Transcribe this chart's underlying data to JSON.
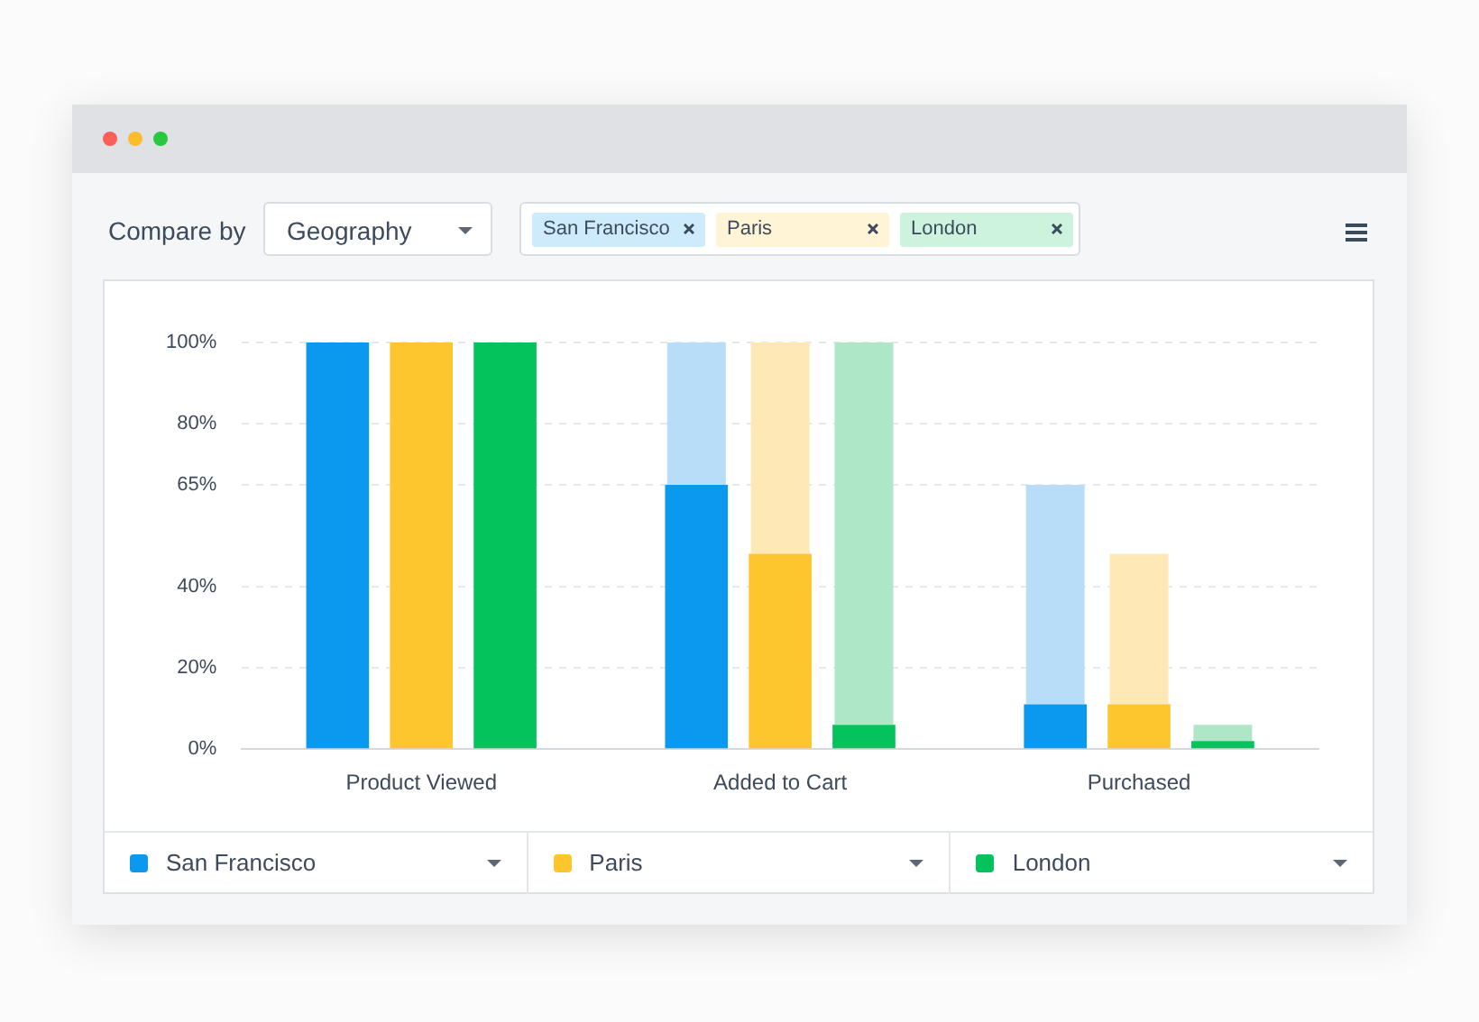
{
  "chart_data": {
    "type": "bar",
    "categories": [
      "Product Viewed",
      "Added to Cart",
      "Purchased"
    ],
    "series": [
      {
        "name": "San Francisco",
        "color": "#0a99ee",
        "values": [
          100,
          65,
          11
        ]
      },
      {
        "name": "Paris",
        "color": "#fec62e",
        "values": [
          100,
          48,
          11
        ]
      },
      {
        "name": "London",
        "color": "#04c35c",
        "values": [
          100,
          6,
          2
        ]
      },
      {
        "color": "#b8ddf8",
        "values": [
          null,
          35,
          54
        ],
        "base": [
          null,
          65,
          11
        ]
      },
      {
        "color": "#fde8b6",
        "values": [
          null,
          52,
          37
        ],
        "base": [
          null,
          48,
          11
        ]
      },
      {
        "color": "#aee7c8",
        "values": [
          null,
          94,
          4
        ],
        "base": [
          null,
          6,
          2
        ]
      }
    ],
    "ylim": [
      0,
      100
    ],
    "yticks": [
      {
        "value": 0,
        "label": "0%"
      },
      {
        "value": 20,
        "label": "20%"
      },
      {
        "value": 40,
        "label": "40%"
      },
      {
        "value": 65,
        "label": "65%"
      },
      {
        "value": 80,
        "label": "80%"
      },
      {
        "value": 100,
        "label": "100%"
      }
    ],
    "grid": "y",
    "legend": "bottom",
    "annotations": [
      "Compare by",
      "Geography"
    ]
  }
}
